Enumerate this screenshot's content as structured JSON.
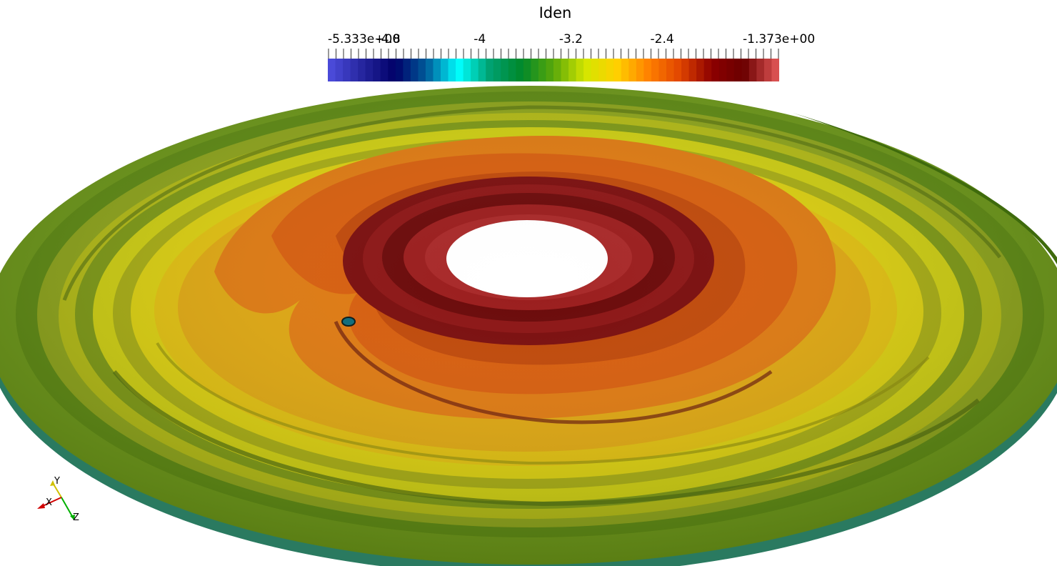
{
  "colorbar": {
    "title": "Iden",
    "min_label": "-5.333e+00",
    "max_label": "-1.373e+00",
    "min": -5.333,
    "max": -1.373,
    "ticks": [
      {
        "value": -4.8,
        "label": "-4.8"
      },
      {
        "value": -4.0,
        "label": "-4"
      },
      {
        "value": -3.2,
        "label": "-3.2"
      },
      {
        "value": -2.4,
        "label": "-2.4"
      }
    ],
    "colormap": [
      "#4a4ad8",
      "#24249c",
      "#000068",
      "#005c9a",
      "#00ffff",
      "#00a070",
      "#00882a",
      "#5aa80a",
      "#d4e600",
      "#ffd000",
      "#ff8000",
      "#e04400",
      "#8c0000",
      "#6a0000",
      "#d85050"
    ]
  },
  "orientation_axes": {
    "x_label": "X",
    "y_label": "Y",
    "z_label": "Z",
    "colors": {
      "x": "#d00000",
      "y": "#d0c000",
      "z": "#00b000"
    }
  },
  "disk": {
    "colors": {
      "outer_green": "#6e9a18",
      "olive": "#8fa61a",
      "yellow": "#d8d012",
      "gold": "#e0a810",
      "orange": "#e07010",
      "dark_orange": "#c04808",
      "red": "#8c1010",
      "dark_red": "#6a0808",
      "inner_red": "#a02020",
      "hole": "#ffffff"
    }
  }
}
